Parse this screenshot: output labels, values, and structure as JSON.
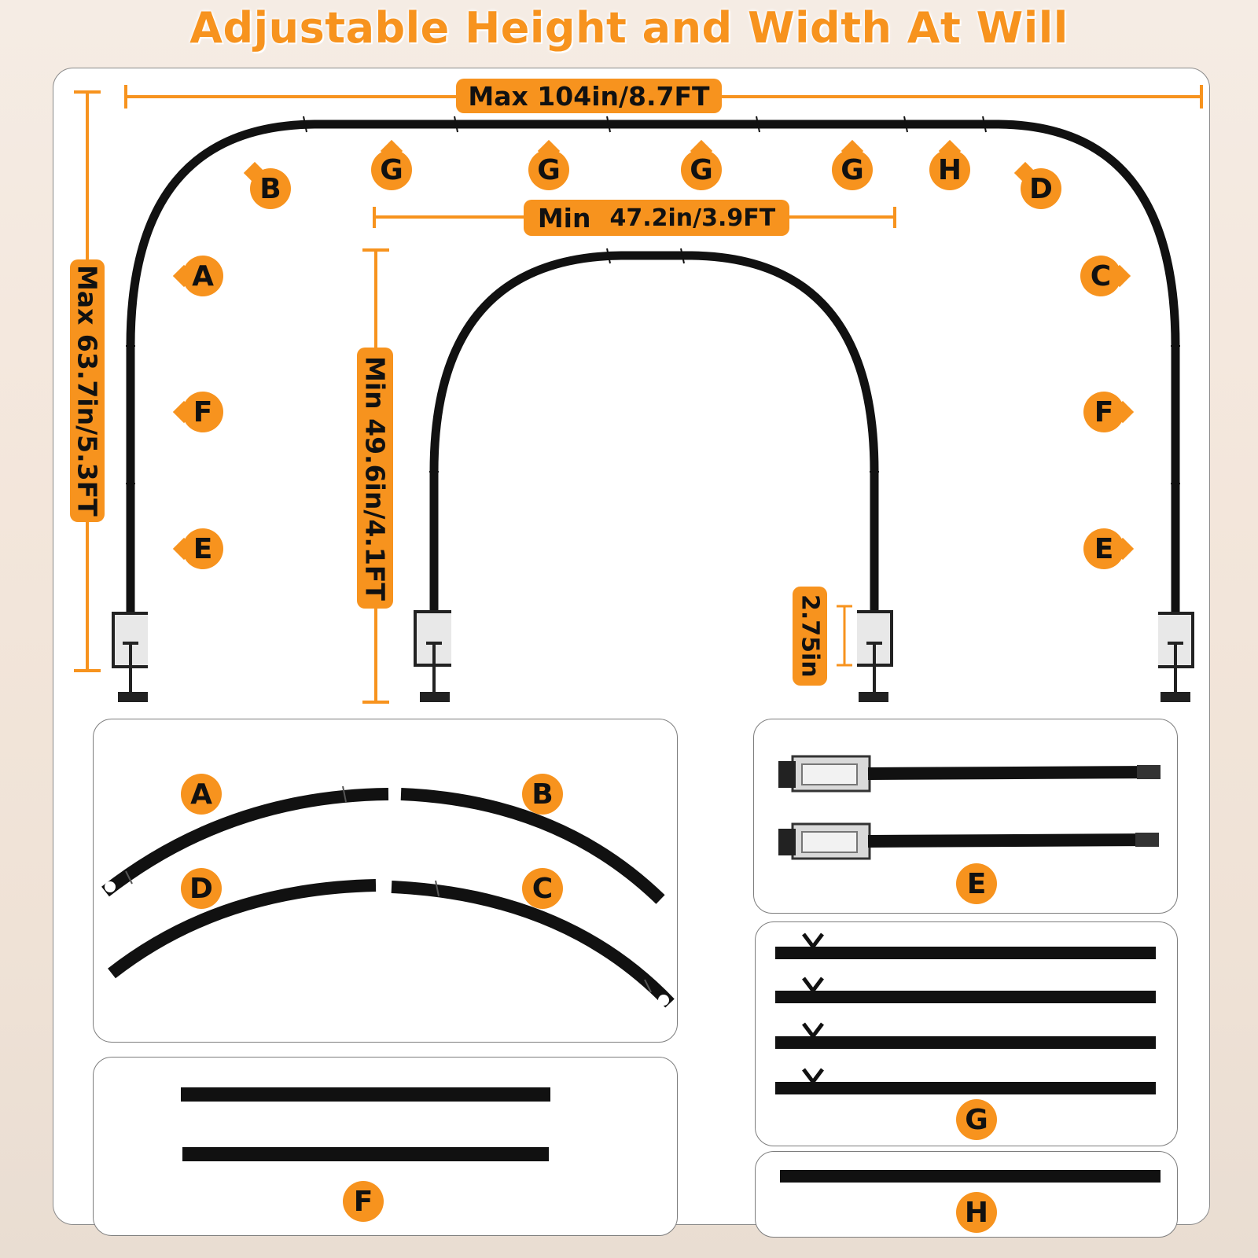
{
  "title": "Adjustable Height and Width At Will",
  "dimensions": {
    "max_width": "Max 104in/8.7FT",
    "min_width_prefix": "Min",
    "min_width_value": "47.2in/3.9FT",
    "max_height": "Max 63.7in/5.3FT",
    "min_height": "Min 49.6in/4.1FT",
    "clamp": "2.75in"
  },
  "markers": {
    "top": [
      "B",
      "G",
      "G",
      "G",
      "G",
      "H",
      "D"
    ],
    "left": [
      "A",
      "F",
      "E"
    ],
    "right": [
      "C",
      "F",
      "E"
    ]
  },
  "parts": {
    "arc_a": "A",
    "arc_b": "B",
    "arc_d": "D",
    "arc_c": "C",
    "pole_e": "E",
    "pole_f": "F",
    "pole_g": "G",
    "pole_h": "H"
  },
  "colors": {
    "accent": "#f7931e",
    "rod": "#111111"
  }
}
